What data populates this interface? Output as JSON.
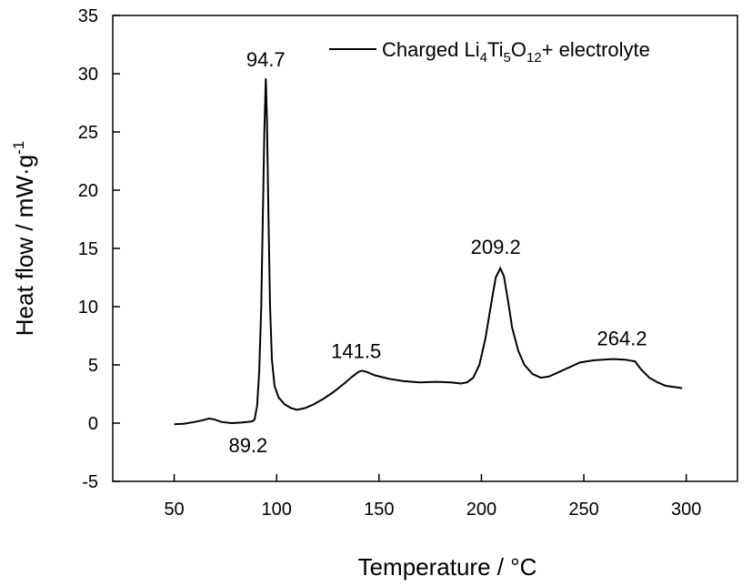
{
  "chart_data": {
    "type": "line",
    "xlabel": "Temperature / °C",
    "ylabel": "Heat flow / mW·g",
    "ylabel_superscript": "-1",
    "xlim": [
      20,
      325
    ],
    "ylim": [
      -5,
      35
    ],
    "xticks": [
      50,
      100,
      150,
      200,
      250,
      300
    ],
    "yticks": [
      -5,
      0,
      5,
      10,
      15,
      20,
      25,
      30,
      35
    ],
    "grid": false,
    "legend_position": "top-right",
    "legend": {
      "prefix": "Charged Li",
      "sub1": "4",
      "mid1": "Ti",
      "sub2": "5",
      "mid2": "O",
      "sub3": "12",
      "suffix": "+ electrolyte"
    },
    "annotations": [
      {
        "text": "94.7",
        "x": 94.7,
        "y": 29.6
      },
      {
        "text": "89.2",
        "x": 89.2,
        "y": 0.3
      },
      {
        "text": "141.5",
        "x": 141.5,
        "y": 4.5
      },
      {
        "text": "209.2",
        "x": 209.2,
        "y": 13.3
      },
      {
        "text": "264.2",
        "x": 264.2,
        "y": 5.5
      }
    ],
    "series": [
      {
        "color": "#000000",
        "points": [
          [
            50,
            -0.1
          ],
          [
            55,
            -0.05
          ],
          [
            60,
            0.1
          ],
          [
            64,
            0.25
          ],
          [
            67,
            0.4
          ],
          [
            70,
            0.3
          ],
          [
            73,
            0.1
          ],
          [
            78,
            0.0
          ],
          [
            83,
            0.05
          ],
          [
            88,
            0.15
          ],
          [
            89.2,
            0.3
          ],
          [
            90.5,
            1.5
          ],
          [
            91.5,
            4.5
          ],
          [
            92.5,
            10
          ],
          [
            93.3,
            18
          ],
          [
            94.0,
            25
          ],
          [
            94.7,
            29.6
          ],
          [
            95.3,
            26
          ],
          [
            96.0,
            18
          ],
          [
            96.8,
            10
          ],
          [
            97.7,
            5.5
          ],
          [
            99,
            3.2
          ],
          [
            101,
            2.2
          ],
          [
            104,
            1.6
          ],
          [
            107,
            1.3
          ],
          [
            110,
            1.15
          ],
          [
            114,
            1.3
          ],
          [
            118,
            1.6
          ],
          [
            123,
            2.1
          ],
          [
            128,
            2.7
          ],
          [
            133,
            3.4
          ],
          [
            137,
            4.0
          ],
          [
            140,
            4.4
          ],
          [
            141.5,
            4.5
          ],
          [
            144,
            4.4
          ],
          [
            148,
            4.1
          ],
          [
            155,
            3.8
          ],
          [
            162,
            3.6
          ],
          [
            170,
            3.5
          ],
          [
            178,
            3.55
          ],
          [
            185,
            3.5
          ],
          [
            190,
            3.4
          ],
          [
            193,
            3.5
          ],
          [
            196,
            3.9
          ],
          [
            199,
            5.0
          ],
          [
            202,
            7.3
          ],
          [
            205,
            10.5
          ],
          [
            207,
            12.5
          ],
          [
            209.2,
            13.3
          ],
          [
            211,
            12.6
          ],
          [
            213,
            10.5
          ],
          [
            215,
            8.2
          ],
          [
            218,
            6.2
          ],
          [
            221,
            5.0
          ],
          [
            225,
            4.2
          ],
          [
            229,
            3.9
          ],
          [
            233,
            4.0
          ],
          [
            238,
            4.4
          ],
          [
            243,
            4.8
          ],
          [
            248,
            5.2
          ],
          [
            255,
            5.4
          ],
          [
            264.2,
            5.5
          ],
          [
            270,
            5.45
          ],
          [
            275,
            5.3
          ],
          [
            278,
            4.6
          ],
          [
            282,
            3.9
          ],
          [
            286,
            3.5
          ],
          [
            290,
            3.2
          ],
          [
            294,
            3.1
          ],
          [
            298,
            3.0
          ]
        ]
      }
    ]
  }
}
